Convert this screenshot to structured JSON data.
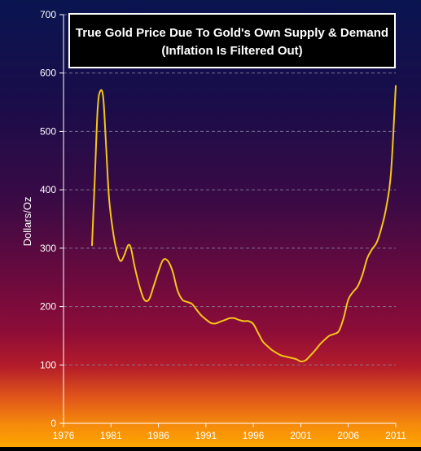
{
  "chart_data": {
    "type": "line",
    "title": "True Gold Price Due To Gold's Own Supply & Demand",
    "subtitle": "(Inflation Is Filtered Out)",
    "xlabel": "",
    "ylabel": "Dollars/Oz",
    "xlim": [
      1976,
      2011
    ],
    "ylim": [
      0,
      700
    ],
    "x_ticks": [
      1976,
      1981,
      1986,
      1991,
      1996,
      2001,
      2006,
      2011
    ],
    "y_ticks": [
      0,
      100,
      200,
      300,
      400,
      500,
      600,
      700
    ],
    "grid": "horizontal dashed",
    "legend": "none",
    "colors": {
      "line": "#f5c518",
      "grid": "#8a8aa0",
      "axis_text": "#ffffff",
      "bg_top": "#0a1550",
      "bg_mid": "#7a0a3c",
      "bg_bottom": "#ffa000",
      "title_box": "#000000"
    },
    "series": [
      {
        "x": [
          1979.0,
          1979.3,
          1979.6,
          1979.9,
          1980.2,
          1980.5,
          1980.8,
          1981.2,
          1981.6,
          1982.0,
          1982.4,
          1982.8,
          1983.1,
          1983.5,
          1984.0,
          1984.5,
          1985.0,
          1985.5,
          1986.0,
          1986.5,
          1987.0,
          1987.5,
          1988.0,
          1988.5,
          1989.0,
          1989.5,
          1990.0,
          1990.5,
          1991.0,
          1991.5,
          1992.0,
          1992.5,
          1993.0,
          1993.5,
          1994.0,
          1994.5,
          1995.0,
          1995.5,
          1996.0,
          1996.5,
          1997.0,
          1997.5,
          1998.0,
          1998.5,
          1999.0,
          1999.5,
          2000.0,
          2000.5,
          2001.0,
          2001.5,
          2002.0,
          2002.5,
          2003.0,
          2003.5,
          2004.0,
          2004.5,
          2005.0,
          2005.5,
          2006.0,
          2006.5,
          2007.0,
          2007.5,
          2008.0,
          2008.5,
          2009.0,
          2009.5,
          2010.0,
          2010.5,
          2011.0
        ],
        "y": [
          305,
          420,
          540,
          570,
          555,
          470,
          385,
          330,
          295,
          278,
          288,
          305,
          300,
          268,
          235,
          212,
          212,
          235,
          260,
          280,
          278,
          260,
          228,
          212,
          208,
          205,
          195,
          185,
          178,
          172,
          171,
          174,
          177,
          180,
          180,
          177,
          175,
          175,
          170,
          155,
          140,
          132,
          125,
          120,
          116,
          114,
          112,
          110,
          106,
          108,
          116,
          125,
          135,
          143,
          150,
          153,
          158,
          180,
          212,
          225,
          235,
          255,
          283,
          298,
          310,
          335,
          370,
          430,
          578
        ]
      }
    ]
  }
}
